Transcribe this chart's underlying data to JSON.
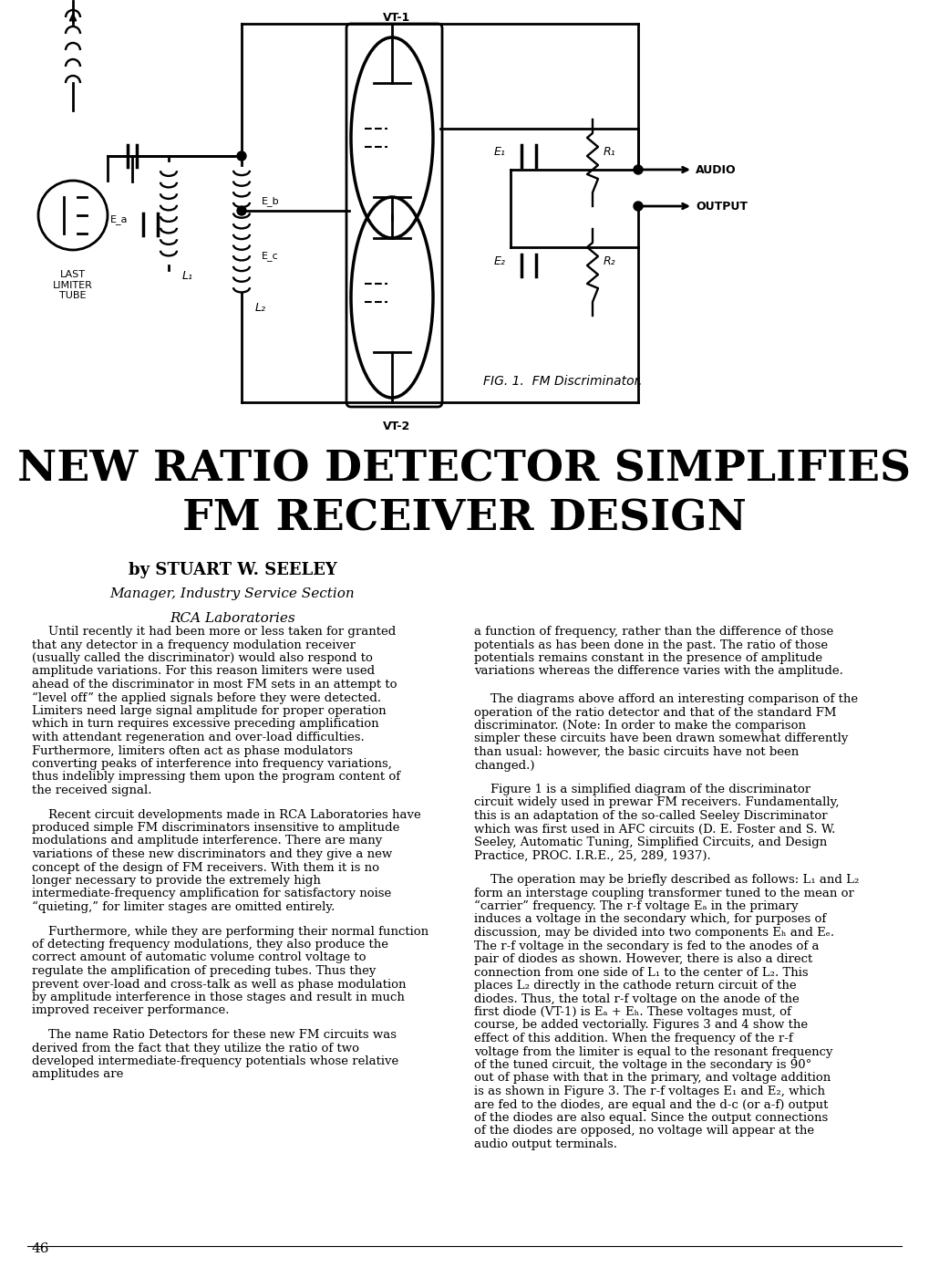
{
  "page_bg": "#ffffff",
  "title_line1": "NEW RATIO DETECTOR SIMPLIFIES",
  "title_line2": "FM RECEIVER DESIGN",
  "byline": "by STUART W. SEELEY",
  "affil1": "Manager, Industry Service Section",
  "affil2": "RCA Laboratories",
  "fig_caption": "FIG. 1.  FM Discriminator.",
  "page_number": "46",
  "col1_paragraphs": [
    "Until recently it had been more or less taken for granted that any detector in a frequency modulation receiver (usually called the discriminator) would also respond to amplitude variations. For this reason limiters were used ahead of the discriminator in most FM sets in an attempt to “level off” the applied signals before they were detected. Limiters need large signal amplitude for proper operation which in turn requires excessive preceding amplification with attendant regeneration and over-load difficulties. Furthermore, limiters often act as phase modulators converting peaks of interference into frequency variations, thus indelibly impressing them upon the program content of the received signal.",
    "Recent circuit developments made in RCA Laboratories have produced simple FM discriminators insensitive to amplitude modulations and amplitude interference. There are many variations of these new discriminators and they give a new concept of the design of FM receivers. With them it is no longer necessary to provide the extremely high intermediate-frequency amplification for satisfactory noise “quieting,” for limiter stages are omitted entirely.",
    "Furthermore, while they are performing their normal function of detecting frequency modulations, they also produce the correct amount of automatic volume control voltage to regulate the amplification of preceding tubes. Thus they prevent over-load and cross-talk as well as phase modulation by amplitude interference in those stages and result in much improved receiver performance.",
    "The name Ratio Detectors for these new FM circuits was derived from the fact that they utilize the ratio of two developed intermediate-frequency potentials whose relative amplitudes are"
  ],
  "col2_paragraphs_top": [
    "a function of frequency, rather than the difference of those potentials as has been done in the past. The ratio of those potentials remains constant in the presence of amplitude variations whereas the difference varies with the amplitude."
  ],
  "col2_paragraphs": [
    "The diagrams above afford an interesting comparison of the operation of the ratio detector and that of the standard FM discriminator. (Note: In order to make the comparison simpler these circuits have been drawn somewhat differently than usual: however, the basic circuits have not been changed.)",
    "Figure 1 is a simplified diagram of the discriminator circuit widely used in prewar FM receivers. Fundamentally, this is an adaptation of the so-called Seeley Discriminator which was first used in AFC circuits (D. E. Foster and S. W. Seeley, Automatic Tuning, Simplified Circuits, and Design Practice, PROC. I.R.E., 25, 289, 1937).",
    "The operation may be briefly described as follows: L₁ and L₂ form an interstage coupling transformer tuned to the mean or “carrier” frequency. The r-f voltage Eₐ in the primary induces a voltage in the secondary which, for purposes of discussion, may be divided into two components Eₕ and Eₑ. The r-f voltage in the secondary is fed to the anodes of a pair of diodes as shown. However, there is also a direct connection from one side of L₁ to the center of L₂. This places L₂ directly in the cathode return circuit of the diodes. Thus, the total r-f voltage on the anode of the first diode (VT-1) is Eₐ + Eₕ. These voltages must, of course, be added vectorially. Figures 3 and 4 show the effect of this addition. When the frequency of the r-f voltage from the limiter is equal to the resonant frequency of the tuned circuit, the voltage in the secondary is 90° out of phase with that in the primary, and voltage addition is as shown in Figure 3. The r-f voltages E₁ and E₂, which are fed to the diodes, are equal and the d-c (or a-f) output of the diodes are also equal. Since the output connections of the diodes are opposed, no voltage will appear at the audio output terminals."
  ]
}
